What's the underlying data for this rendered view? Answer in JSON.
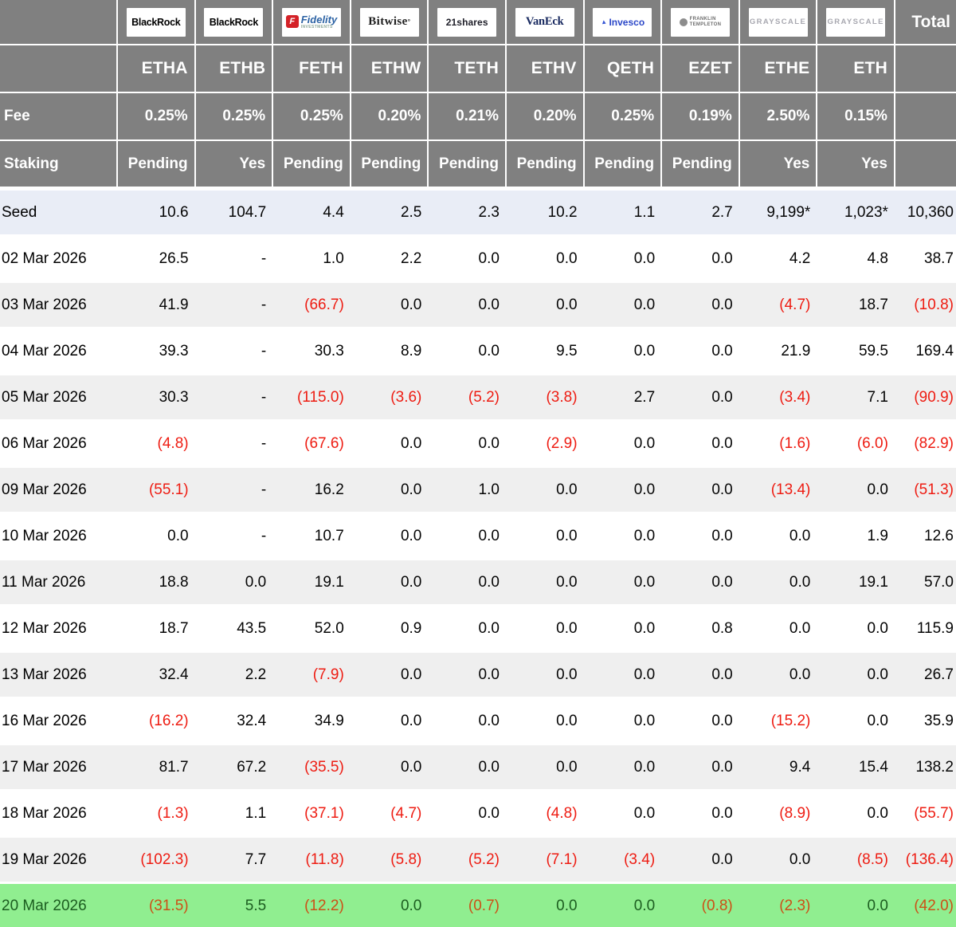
{
  "colors": {
    "header_bg": "#808080",
    "header_text": "#ffffff",
    "seed_row_bg": "#e9edf6",
    "alt_row_bg": "#efefef",
    "highlight_row_bg": "#90ee90",
    "negative_text": "#ee1c12",
    "highlight_negative_text": "#cc5016",
    "highlight_positive_text": "#1c5e20",
    "fidelity_red": "#d42127",
    "invesco_blue": "#2b47c8",
    "vaneck_navy": "#16275e",
    "grayscale_grey": "#a8a8b0"
  },
  "chart_data": {
    "type": "table",
    "total_label": "Total",
    "fee_label": "Fee",
    "staking_label": "Staking",
    "columns": [
      {
        "id": "ETHA",
        "provider": "BlackRock",
        "logo": "blackrock",
        "logo_text": "BlackRock",
        "fee": "0.25%",
        "staking": "Pending"
      },
      {
        "id": "ETHB",
        "provider": "BlackRock",
        "logo": "blackrock",
        "logo_text": "BlackRock",
        "fee": "0.25%",
        "staking": "Yes"
      },
      {
        "id": "FETH",
        "provider": "Fidelity",
        "logo": "fidelity",
        "logo_icon": "F",
        "logo_text": "Fidelity",
        "logo_sub": "INVESTMENTS",
        "fee": "0.25%",
        "staking": "Pending"
      },
      {
        "id": "ETHW",
        "provider": "Bitwise",
        "logo": "bitwise",
        "logo_text": "Bitwise",
        "logo_mark": "°",
        "fee": "0.20%",
        "staking": "Pending"
      },
      {
        "id": "TETH",
        "provider": "21shares",
        "logo": "shares21",
        "logo_text": "21shares",
        "fee": "0.21%",
        "staking": "Pending"
      },
      {
        "id": "ETHV",
        "provider": "VanEck",
        "logo": "vaneck",
        "logo_text": "VanEck",
        "fee": "0.20%",
        "staking": "Pending"
      },
      {
        "id": "QETH",
        "provider": "Invesco",
        "logo": "invesco",
        "logo_text": "Invesco",
        "fee": "0.25%",
        "staking": "Pending"
      },
      {
        "id": "EZET",
        "provider": "Franklin Templeton",
        "logo": "franklin",
        "logo_text_1": "FRANKLIN",
        "logo_text_2": "TEMPLETON",
        "fee": "0.19%",
        "staking": "Pending"
      },
      {
        "id": "ETHE",
        "provider": "Grayscale",
        "logo": "grayscale",
        "logo_text": "GRAYSCALE",
        "fee": "2.50%",
        "staking": "Yes"
      },
      {
        "id": "ETH",
        "provider": "Grayscale",
        "logo": "grayscale",
        "logo_text": "GRAYSCALE",
        "fee": "0.15%",
        "staking": "Yes"
      }
    ],
    "rows": [
      {
        "label": "Seed",
        "seed": true,
        "values": [
          "10.6",
          "104.7",
          "4.4",
          "2.5",
          "2.3",
          "10.2",
          "1.1",
          "2.7",
          "9,199*",
          "1,023*"
        ],
        "total": "10,360"
      },
      {
        "label": "02 Mar 2026",
        "values": [
          "26.5",
          "-",
          "1.0",
          "2.2",
          "0.0",
          "0.0",
          "0.0",
          "0.0",
          "4.2",
          "4.8"
        ],
        "total": "38.7"
      },
      {
        "label": "03 Mar 2026",
        "values": [
          "41.9",
          "-",
          "(66.7)",
          "0.0",
          "0.0",
          "0.0",
          "0.0",
          "0.0",
          "(4.7)",
          "18.7"
        ],
        "total": "(10.8)"
      },
      {
        "label": "04 Mar 2026",
        "values": [
          "39.3",
          "-",
          "30.3",
          "8.9",
          "0.0",
          "9.5",
          "0.0",
          "0.0",
          "21.9",
          "59.5"
        ],
        "total": "169.4"
      },
      {
        "label": "05 Mar 2026",
        "values": [
          "30.3",
          "-",
          "(115.0)",
          "(3.6)",
          "(5.2)",
          "(3.8)",
          "2.7",
          "0.0",
          "(3.4)",
          "7.1"
        ],
        "total": "(90.9)"
      },
      {
        "label": "06 Mar 2026",
        "values": [
          "(4.8)",
          "-",
          "(67.6)",
          "0.0",
          "0.0",
          "(2.9)",
          "0.0",
          "0.0",
          "(1.6)",
          "(6.0)"
        ],
        "total": "(82.9)"
      },
      {
        "label": "09 Mar 2026",
        "values": [
          "(55.1)",
          "-",
          "16.2",
          "0.0",
          "1.0",
          "0.0",
          "0.0",
          "0.0",
          "(13.4)",
          "0.0"
        ],
        "total": "(51.3)"
      },
      {
        "label": "10 Mar 2026",
        "values": [
          "0.0",
          "-",
          "10.7",
          "0.0",
          "0.0",
          "0.0",
          "0.0",
          "0.0",
          "0.0",
          "1.9"
        ],
        "total": "12.6"
      },
      {
        "label": "11 Mar 2026",
        "values": [
          "18.8",
          "0.0",
          "19.1",
          "0.0",
          "0.0",
          "0.0",
          "0.0",
          "0.0",
          "0.0",
          "19.1"
        ],
        "total": "57.0"
      },
      {
        "label": "12 Mar 2026",
        "values": [
          "18.7",
          "43.5",
          "52.0",
          "0.9",
          "0.0",
          "0.0",
          "0.0",
          "0.8",
          "0.0",
          "0.0"
        ],
        "total": "115.9"
      },
      {
        "label": "13 Mar 2026",
        "values": [
          "32.4",
          "2.2",
          "(7.9)",
          "0.0",
          "0.0",
          "0.0",
          "0.0",
          "0.0",
          "0.0",
          "0.0"
        ],
        "total": "26.7"
      },
      {
        "label": "16 Mar 2026",
        "values": [
          "(16.2)",
          "32.4",
          "34.9",
          "0.0",
          "0.0",
          "0.0",
          "0.0",
          "0.0",
          "(15.2)",
          "0.0"
        ],
        "total": "35.9"
      },
      {
        "label": "17 Mar 2026",
        "values": [
          "81.7",
          "67.2",
          "(35.5)",
          "0.0",
          "0.0",
          "0.0",
          "0.0",
          "0.0",
          "9.4",
          "15.4"
        ],
        "total": "138.2"
      },
      {
        "label": "18 Mar 2026",
        "values": [
          "(1.3)",
          "1.1",
          "(37.1)",
          "(4.7)",
          "0.0",
          "(4.8)",
          "0.0",
          "0.0",
          "(8.9)",
          "0.0"
        ],
        "total": "(55.7)"
      },
      {
        "label": "19 Mar 2026",
        "values": [
          "(102.3)",
          "7.7",
          "(11.8)",
          "(5.8)",
          "(5.2)",
          "(7.1)",
          "(3.4)",
          "0.0",
          "0.0",
          "(8.5)"
        ],
        "total": "(136.4)"
      },
      {
        "label": "20 Mar 2026",
        "highlight": true,
        "values": [
          "(31.5)",
          "5.5",
          "(12.2)",
          "0.0",
          "(0.7)",
          "0.0",
          "0.0",
          "(0.8)",
          "(2.3)",
          "0.0"
        ],
        "total": "(42.0)"
      }
    ]
  }
}
